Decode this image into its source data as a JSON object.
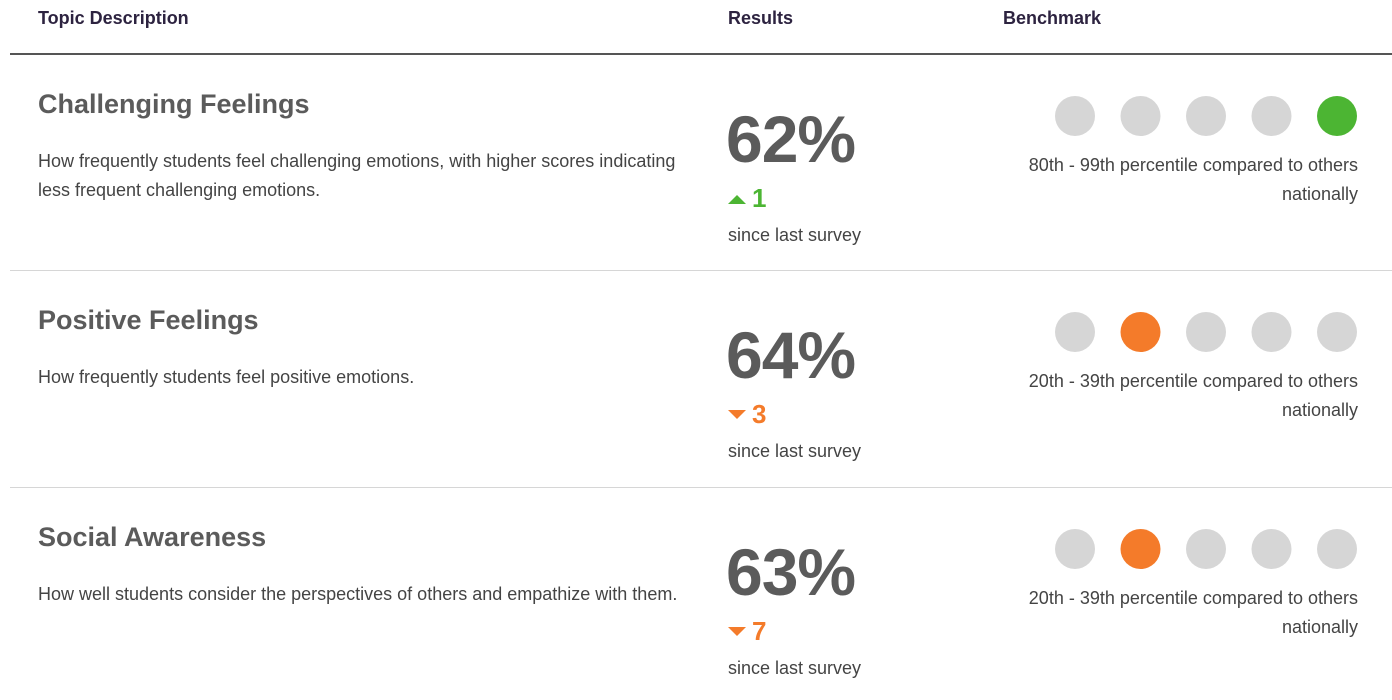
{
  "header": {
    "columns": [
      "Topic Description",
      "Results",
      "Benchmark"
    ]
  },
  "rows": [
    {
      "title": "Challenging Feelings",
      "description": "How frequently students feel challenging emotions, with higher scores indicating less frequent challenging emotions.",
      "result": "62%",
      "change": "1",
      "direction": "up",
      "change_note": "since last survey",
      "benchmark_position": 5,
      "benchmark_color": "#4cb533",
      "benchmark_label": "80th - 99th percentile compared to others nationally"
    },
    {
      "title": "Positive Feelings",
      "description": "How frequently students feel positive emotions.",
      "result": "64%",
      "change": "3",
      "direction": "down",
      "change_note": "since last survey",
      "benchmark_position": 2,
      "benchmark_color": "#f47b2a",
      "benchmark_label": "20th - 39th percentile compared to others nationally"
    },
    {
      "title": "Social Awareness",
      "description": "How well students consider the perspectives of others and empathize with them.",
      "result": "63%",
      "change": "7",
      "direction": "down",
      "change_note": "since last survey",
      "benchmark_position": 2,
      "benchmark_color": "#f47b2a",
      "benchmark_label": "20th - 39th percentile compared to others nationally"
    }
  ]
}
